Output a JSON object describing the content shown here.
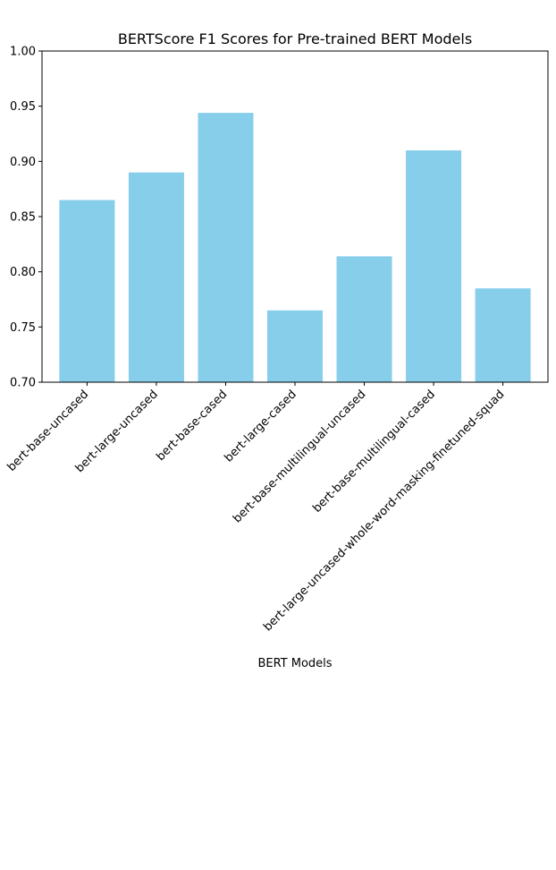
{
  "chart_data": {
    "type": "bar",
    "title": "BERTScore F1 Scores for Pre-trained BERT Models",
    "xlabel": "BERT Models",
    "ylabel": "",
    "ylim": [
      0.7,
      1.0
    ],
    "yticks": [
      "0.70",
      "0.75",
      "0.80",
      "0.85",
      "0.90",
      "0.95",
      "1.00"
    ],
    "categories": [
      "bert-base-uncased",
      "bert-large-uncased",
      "bert-base-cased",
      "bert-large-cased",
      "bert-base-multilingual-uncased",
      "bert-base-multilingual-cased",
      "bert-large-uncased-whole-word-masking-finetuned-squad"
    ],
    "values": [
      0.865,
      0.89,
      0.944,
      0.765,
      0.814,
      0.91,
      0.785
    ],
    "bar_color": "#87CEEB",
    "grid": false,
    "legend": "none"
  }
}
